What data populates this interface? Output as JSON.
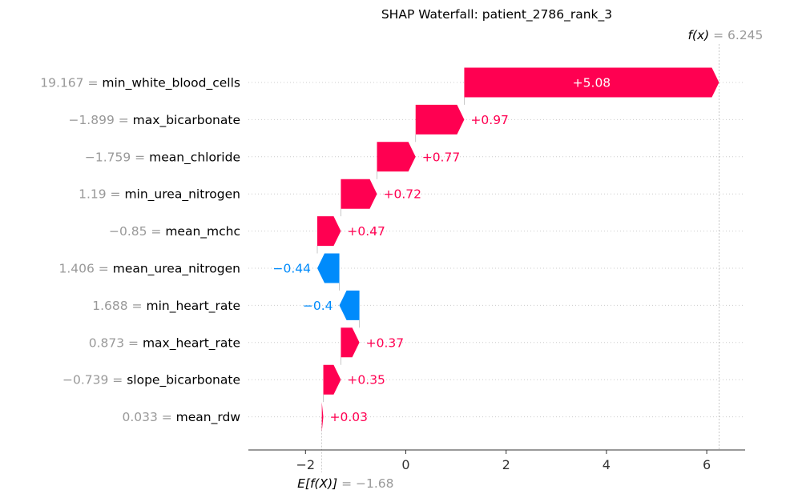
{
  "chart_data": {
    "type": "bar",
    "title": "SHAP Waterfall: patient_2786_rank_3",
    "fx_label": "f(x)",
    "fx_value": "6.245",
    "ex_label": "E[f(X)]",
    "ex_value": "−1.68",
    "base_value": -1.68,
    "final_value": 6.245,
    "xlim": [
      -3.1,
      6.75
    ],
    "xticks": [
      -2,
      0,
      2,
      4,
      6
    ],
    "xtick_labels": [
      "−2",
      "0",
      "2",
      "4",
      "6"
    ],
    "grid": "dotted horizontal",
    "features": [
      {
        "value_text": "19.167",
        "name": "min_white_blood_cells",
        "contribution": 5.08,
        "label": "+5.08"
      },
      {
        "value_text": "−1.899",
        "name": "max_bicarbonate",
        "contribution": 0.97,
        "label": "+0.97"
      },
      {
        "value_text": "−1.759",
        "name": "mean_chloride",
        "contribution": 0.77,
        "label": "+0.77"
      },
      {
        "value_text": "1.19",
        "name": "min_urea_nitrogen",
        "contribution": 0.72,
        "label": "+0.72"
      },
      {
        "value_text": "−0.85",
        "name": "mean_mchc",
        "contribution": 0.47,
        "label": "+0.47"
      },
      {
        "value_text": "1.406",
        "name": "mean_urea_nitrogen",
        "contribution": -0.44,
        "label": "−0.44"
      },
      {
        "value_text": "1.688",
        "name": "min_heart_rate",
        "contribution": -0.4,
        "label": "−0.4"
      },
      {
        "value_text": "0.873",
        "name": "max_heart_rate",
        "contribution": 0.37,
        "label": "+0.37"
      },
      {
        "value_text": "−0.739",
        "name": "slope_bicarbonate",
        "contribution": 0.35,
        "label": "+0.35"
      },
      {
        "value_text": "0.033",
        "name": "mean_rdw",
        "contribution": 0.03,
        "label": "+0.03"
      }
    ],
    "colors": {
      "positive": "#ff0051",
      "negative": "#008bfb",
      "feature_value": "#999999",
      "axis": "#333333"
    }
  }
}
